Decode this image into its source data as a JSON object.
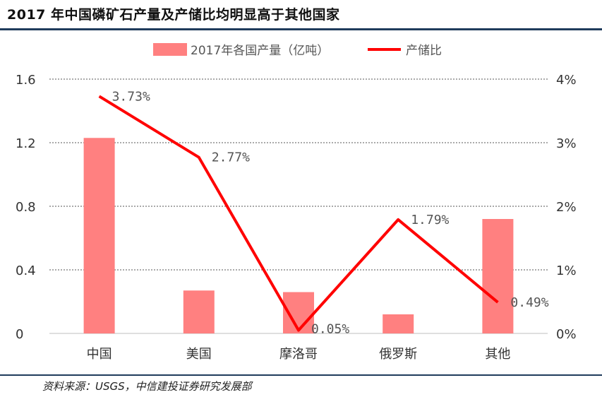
{
  "title": "2017 年中国磷矿石产量及产储比均明显高于其他国家",
  "source": "资料来源：USGS，中信建投证券研究发展部",
  "colors": {
    "bar": "#ff8080",
    "line": "#ff0000",
    "rule": "#1f3b5c"
  },
  "chart_data": {
    "type": "bar",
    "categories": [
      "中国",
      "美国",
      "摩洛哥",
      "俄罗斯",
      "其他"
    ],
    "series": [
      {
        "name": "2017年各国产量（亿吨）",
        "type": "bar",
        "axis": "left",
        "values": [
          1.23,
          0.27,
          0.26,
          0.12,
          0.72
        ]
      },
      {
        "name": "产储比",
        "type": "line",
        "axis": "right",
        "values": [
          3.73,
          2.77,
          0.05,
          1.79,
          0.49
        ],
        "labels": [
          "3.73%",
          "2.77%",
          "0.05%",
          "1.79%",
          "0.49%"
        ]
      }
    ],
    "y_left": {
      "ticks": [
        "0",
        "0.4",
        "0.8",
        "1.2",
        "1.6"
      ],
      "lim": [
        0,
        1.6
      ]
    },
    "y_right": {
      "ticks": [
        "0%",
        "1%",
        "2%",
        "3%",
        "4%"
      ],
      "lim": [
        0,
        4
      ]
    },
    "grid": true,
    "legend_position": "top"
  }
}
